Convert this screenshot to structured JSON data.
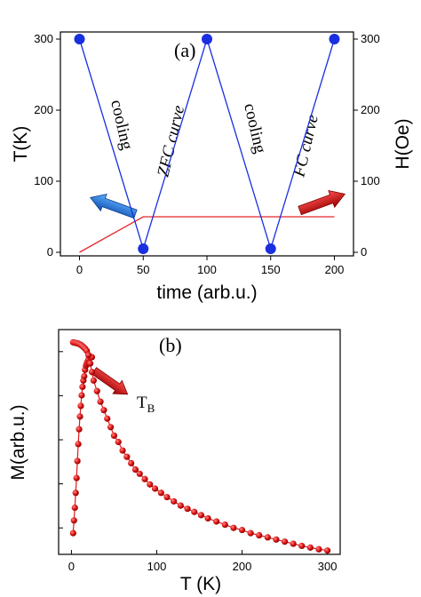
{
  "chart_data": [
    {
      "type": "line",
      "panel_label": "(a)",
      "xlabel": "time (arb.u.)",
      "ylabel": "T(K)",
      "ylabel_right": "H(Oe)",
      "xlim": [
        -15,
        215
      ],
      "ylim": [
        -5,
        310
      ],
      "ylim_right": [
        -5,
        310
      ],
      "x_ticks": [
        0,
        50,
        100,
        150,
        200
      ],
      "y_ticks": [
        0,
        100,
        200,
        300
      ],
      "y_ticks_right": [
        0,
        100,
        200,
        300
      ],
      "series": [
        {
          "axis": "left",
          "color": "#1a2fe0",
          "markers": [
            [
              0,
              300
            ],
            [
              50,
              5
            ],
            [
              100,
              300
            ],
            [
              150,
              5
            ],
            [
              200,
              300
            ]
          ],
          "x": [
            0,
            50,
            100,
            150,
            200
          ],
          "y": [
            300,
            5,
            300,
            5,
            300
          ]
        },
        {
          "axis": "right",
          "color": "#e8242b",
          "x": [
            0,
            50,
            200
          ],
          "y": [
            0,
            50,
            50
          ]
        }
      ],
      "annotations": [
        "cooling",
        "ZFC curve",
        "cooling",
        "FC curve"
      ],
      "arrows": [
        {
          "color": "#1f6fd0",
          "direction": "left"
        },
        {
          "color": "#d01818",
          "direction": "right"
        }
      ],
      "grid": false
    },
    {
      "type": "scatter",
      "panel_label": "(b)",
      "xlabel": "T (K)",
      "ylabel": "M(arb.u.)",
      "xlim": [
        -15,
        315
      ],
      "ylim": [
        0,
        1.06
      ],
      "x_ticks": [
        0,
        100,
        200,
        300
      ],
      "y_ticks_count": 5,
      "annotation": "T",
      "annotation_sub": "B",
      "arrow_color": "#c81818",
      "series": [
        {
          "name": "ZFC",
          "color": "#e01a1a",
          "x": [
            2,
            3,
            4,
            5,
            6,
            7,
            8,
            9,
            10,
            11,
            12,
            13,
            14,
            15,
            16,
            17,
            18,
            19,
            20,
            22,
            24
          ],
          "y": [
            0.1,
            0.16,
            0.22,
            0.29,
            0.36,
            0.44,
            0.52,
            0.59,
            0.65,
            0.7,
            0.75,
            0.79,
            0.82,
            0.84,
            0.87,
            0.89,
            0.9,
            0.91,
            0.92,
            0.93,
            0.93
          ]
        },
        {
          "name": "FC",
          "color": "#e01a1a",
          "x": [
            2,
            4,
            6,
            8,
            10,
            12,
            14,
            16,
            18,
            20,
            22,
            24,
            26,
            30,
            34,
            38,
            42,
            46,
            50,
            55,
            60,
            65,
            70,
            75,
            80,
            86,
            92,
            98,
            105,
            112,
            120,
            128,
            136,
            144,
            152,
            160,
            170,
            180,
            190,
            200,
            210,
            220,
            230,
            240,
            250,
            260,
            270,
            280,
            290,
            300
          ],
          "y": [
            1.0,
            0.998,
            0.996,
            0.994,
            0.99,
            0.985,
            0.978,
            0.97,
            0.96,
            0.94,
            0.9,
            0.86,
            0.82,
            0.77,
            0.72,
            0.68,
            0.64,
            0.6,
            0.56,
            0.53,
            0.49,
            0.46,
            0.43,
            0.4,
            0.38,
            0.355,
            0.33,
            0.31,
            0.29,
            0.27,
            0.25,
            0.23,
            0.215,
            0.2,
            0.185,
            0.17,
            0.155,
            0.14,
            0.125,
            0.115,
            0.1,
            0.09,
            0.08,
            0.07,
            0.06,
            0.05,
            0.04,
            0.032,
            0.024,
            0.018
          ]
        }
      ],
      "grid": false
    }
  ]
}
